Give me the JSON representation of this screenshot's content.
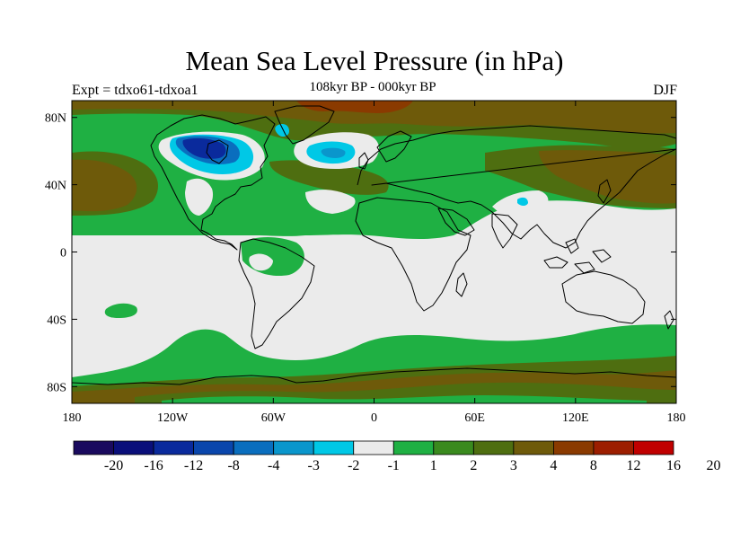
{
  "title": "Mean Sea Level Pressure (in hPa)",
  "experiment": "Expt = tdxo61-tdxoa1",
  "period": "108kyr BP - 000kyr BP",
  "season": "DJF",
  "lat_axis": {
    "ticks": [
      {
        "value": 80,
        "label": "80N"
      },
      {
        "value": 40,
        "label": "40N"
      },
      {
        "value": 0,
        "label": "0"
      },
      {
        "value": -40,
        "label": "40S"
      },
      {
        "value": -80,
        "label": "80S"
      }
    ]
  },
  "lon_axis": {
    "ticks": [
      {
        "value": -180,
        "label": "180"
      },
      {
        "value": -120,
        "label": "120W"
      },
      {
        "value": -60,
        "label": "60W"
      },
      {
        "value": 0,
        "label": "0"
      },
      {
        "value": 60,
        "label": "60E"
      },
      {
        "value": 120,
        "label": "120E"
      },
      {
        "value": 180,
        "label": "180"
      }
    ]
  },
  "colorbar": {
    "colors": [
      "#1a0a5e",
      "#0a0f7a",
      "#0a2a9c",
      "#0a46ac",
      "#0a6ebe",
      "#0a96cc",
      "#00c8e6",
      "#ebebeb",
      "#1fb043",
      "#3a8a1e",
      "#4e6e10",
      "#6e5a0a",
      "#8a3a00",
      "#9c1e00",
      "#c00000"
    ],
    "labels": [
      "-20",
      "-16",
      "-12",
      "-8",
      "-4",
      "-3",
      "-2",
      "-1",
      "1",
      "2",
      "3",
      "4",
      "8",
      "12",
      "16",
      "20"
    ]
  }
}
